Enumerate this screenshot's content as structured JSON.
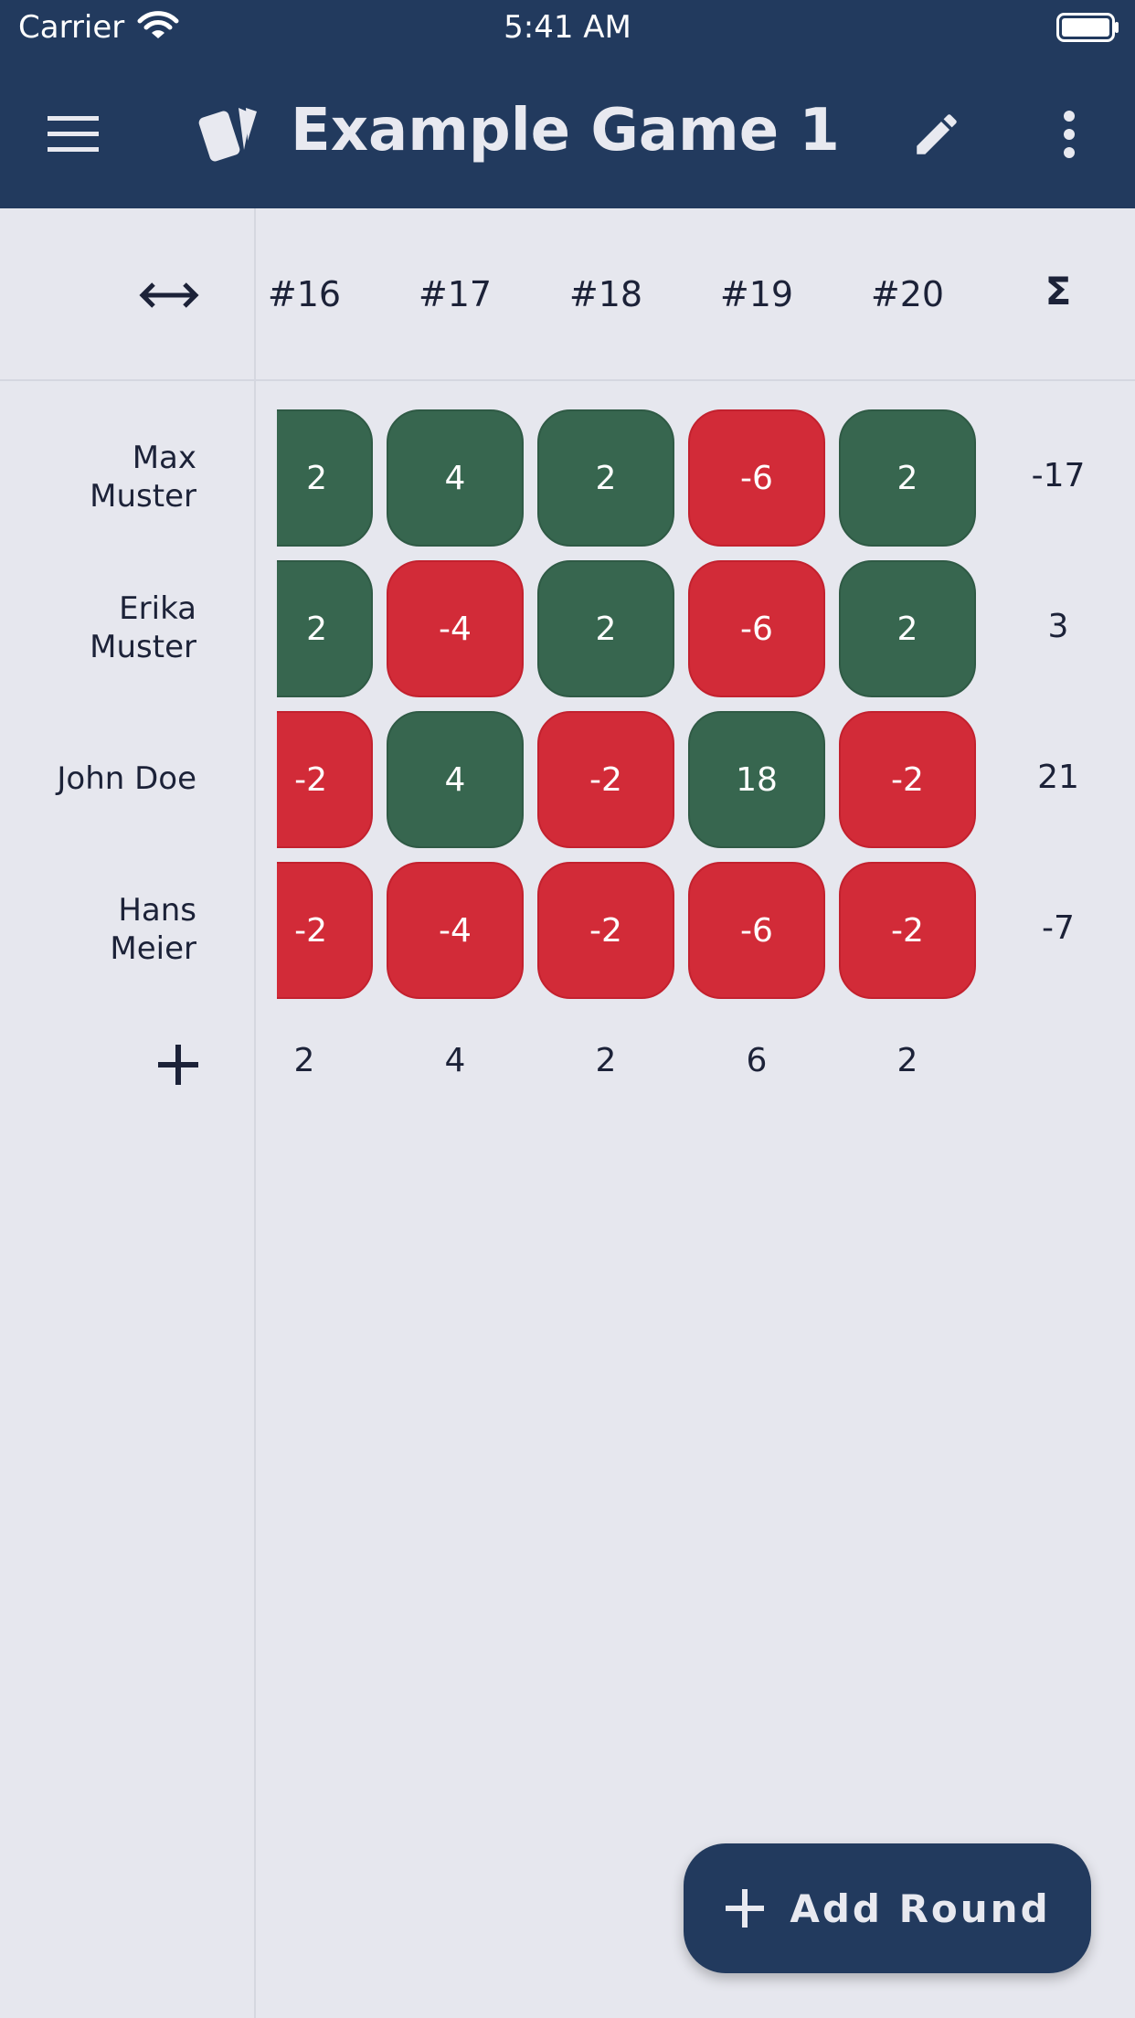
{
  "status_bar": {
    "carrier": "Carrier",
    "time": "5:41 AM"
  },
  "app_bar": {
    "title": "Example Game 1"
  },
  "rounds": [
    "#16",
    "#17",
    "#18",
    "#19",
    "#20"
  ],
  "sigma": "Σ",
  "players": [
    {
      "name": "Max\nMuster",
      "scores": [
        "2",
        "4",
        "2",
        "-6",
        "2"
      ],
      "total": "-17"
    },
    {
      "name": "Erika\nMuster",
      "scores": [
        "2",
        "-4",
        "2",
        "-6",
        "2"
      ],
      "total": "3"
    },
    {
      "name": "John Doe",
      "scores": [
        "-2",
        "4",
        "-2",
        "18",
        "-2"
      ],
      "total": "21"
    },
    {
      "name": "Hans\nMeier",
      "scores": [
        "-2",
        "-4",
        "-2",
        "-6",
        "-2"
      ],
      "total": "-7"
    }
  ],
  "round_sums": [
    "2",
    "4",
    "2",
    "6",
    "2"
  ],
  "fab": {
    "label": "Add Round"
  },
  "colors": {
    "header": "#223a5e",
    "positive": "#37664f",
    "negative": "#d22b38",
    "background": "#e6e7ee"
  },
  "icons": [
    "wifi-icon",
    "battery-icon",
    "menu-icon",
    "cards-logo-icon",
    "edit-icon",
    "more-vert-icon",
    "expand-horizontal-icon",
    "add-icon"
  ]
}
